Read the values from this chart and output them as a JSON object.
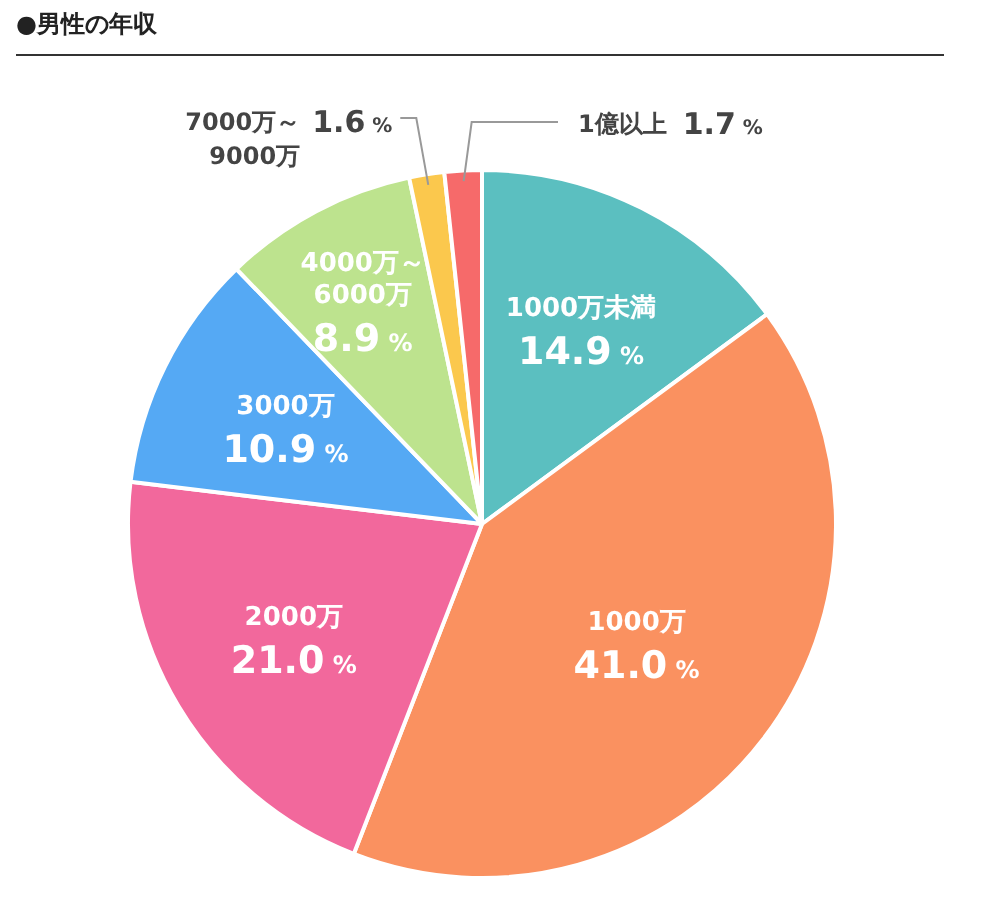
{
  "chart_data": {
    "type": "pie",
    "title": "●男性の年収",
    "categories": [
      "1000万未満",
      "1000万",
      "2000万",
      "3000万",
      "4000万～6000万",
      "7000万～9000万",
      "1億以上"
    ],
    "values": [
      14.9,
      41.0,
      21.0,
      10.9,
      8.9,
      1.6,
      1.7
    ],
    "value_labels": [
      "14.9 %",
      "41.0 %",
      "21.0 %",
      "10.9 %",
      "8.9 %",
      "1.6 %",
      "1.7 %"
    ],
    "colors": [
      "#5bbfc0",
      "#fa9160",
      "#f2689c",
      "#55a9f4",
      "#bde38e",
      "#fbc84d",
      "#f66a6a"
    ],
    "legend": false
  }
}
